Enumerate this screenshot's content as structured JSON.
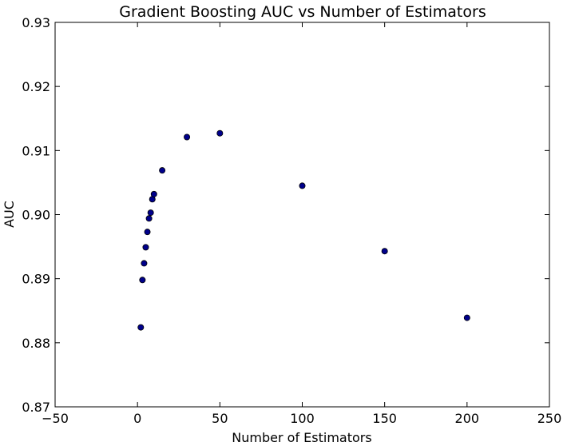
{
  "chart_data": {
    "type": "scatter",
    "title": "Gradient Boosting AUC vs Number of Estimators",
    "xlabel": "Number of Estimators",
    "ylabel": "AUC",
    "xlim": [
      -50,
      250
    ],
    "ylim": [
      0.87,
      0.93
    ],
    "xticks": [
      "−50",
      "0",
      "50",
      "100",
      "150",
      "200",
      "250"
    ],
    "xtick_values": [
      -50,
      0,
      50,
      100,
      150,
      200,
      250
    ],
    "yticks": [
      "0.87",
      "0.88",
      "0.89",
      "0.90",
      "0.91",
      "0.92",
      "0.93"
    ],
    "ytick_values": [
      0.87,
      0.88,
      0.89,
      0.9,
      0.91,
      0.92,
      0.93
    ],
    "grid": false,
    "marker_color": "#00008b",
    "points": [
      {
        "x": 2,
        "y": 0.8824
      },
      {
        "x": 3,
        "y": 0.8898
      },
      {
        "x": 4,
        "y": 0.8924
      },
      {
        "x": 5,
        "y": 0.8949
      },
      {
        "x": 6,
        "y": 0.8973
      },
      {
        "x": 7,
        "y": 0.8994
      },
      {
        "x": 8,
        "y": 0.9003
      },
      {
        "x": 9,
        "y": 0.9024
      },
      {
        "x": 10,
        "y": 0.9032
      },
      {
        "x": 15,
        "y": 0.9069
      },
      {
        "x": 30,
        "y": 0.9121
      },
      {
        "x": 50,
        "y": 0.9127
      },
      {
        "x": 100,
        "y": 0.9045
      },
      {
        "x": 150,
        "y": 0.8943
      },
      {
        "x": 200,
        "y": 0.8839
      }
    ]
  }
}
